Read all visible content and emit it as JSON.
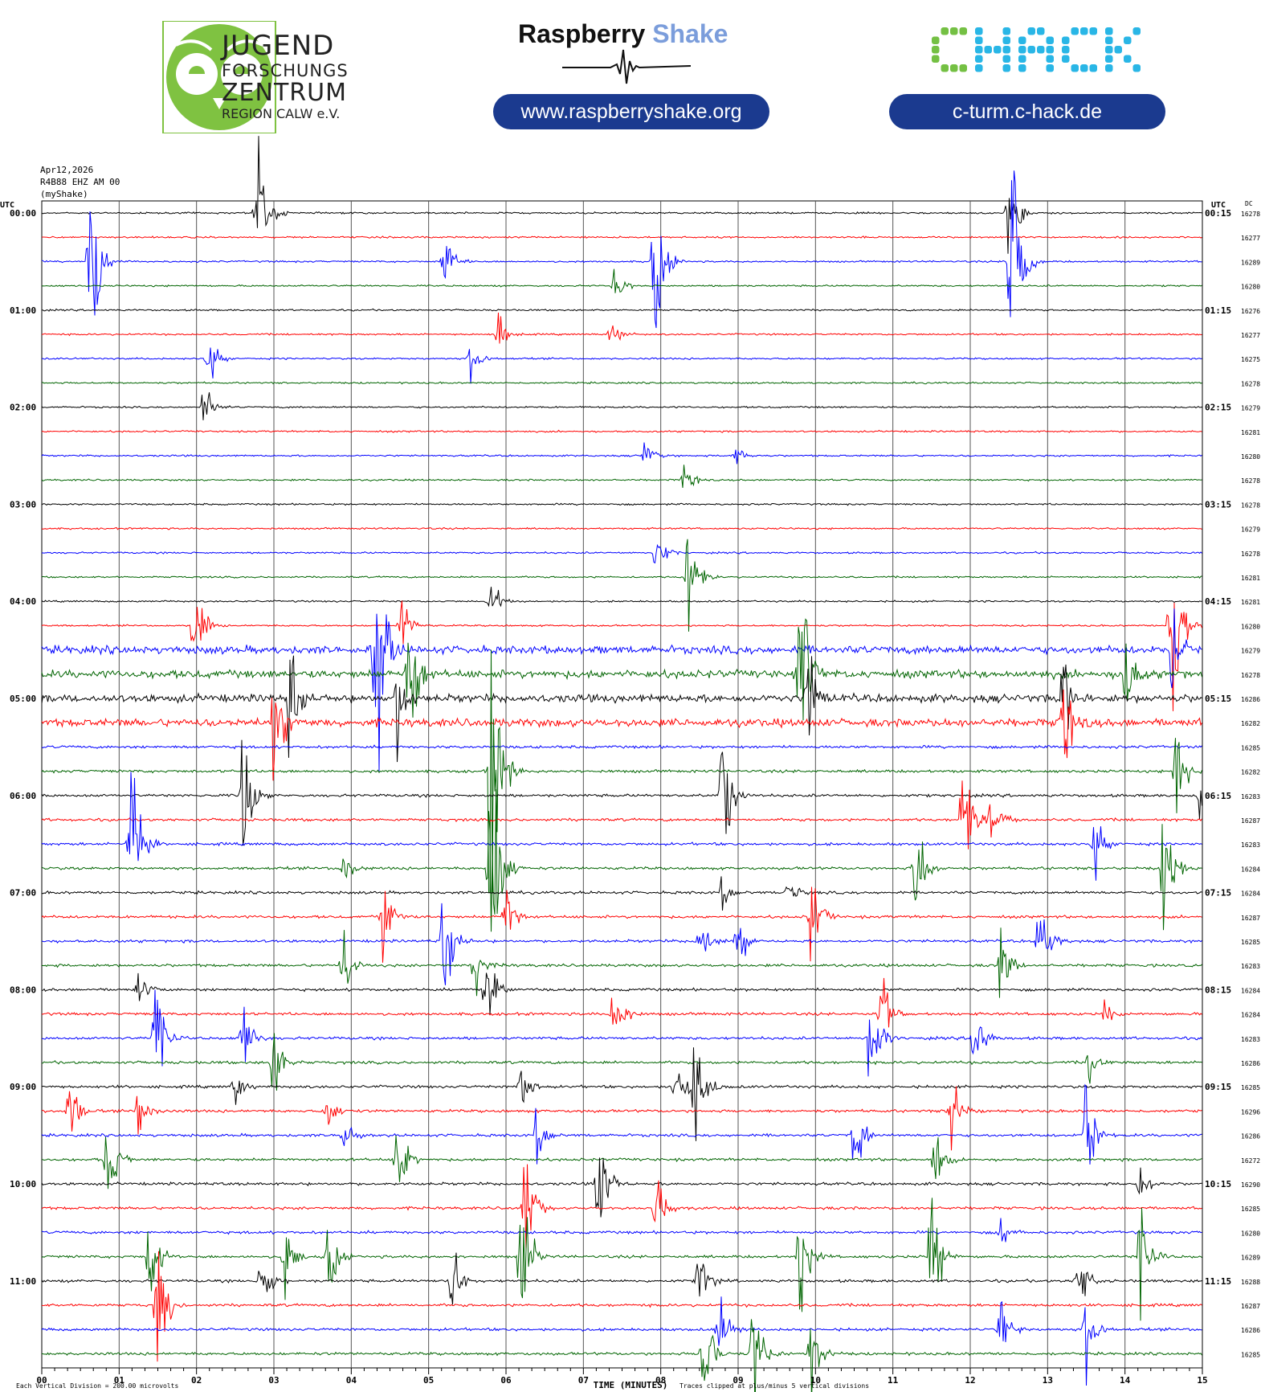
{
  "header": {
    "jfz": {
      "line1": "JUGEND",
      "line2": "FORSCHUNGS",
      "line3": "ZENTRUM",
      "line4": "REGION CALW e.V."
    },
    "rs": {
      "name_part1": "Raspberry",
      "name_part2": "Shake",
      "url": "www.raspberryshake.org"
    },
    "chack": {
      "logo_text": "CHACK",
      "url": "c-turm.c-hack.de"
    },
    "colors": {
      "jfz_green": "#7fc241",
      "pill_blue": "#1b3a8f",
      "shake_blue": "#7b9ddb",
      "chack_green": "#74c043",
      "chack_cyan": "#29b6e6"
    }
  },
  "chart_data": {
    "type": "helicorder",
    "date": "Apr12,2026",
    "station": "R4B88 EHZ AM 00",
    "network": "(myShake)",
    "left_axis_title": "UTC",
    "right_axis_title": "UTC",
    "dc_title": "DC",
    "xlabel": "TIME (MINUTES)",
    "xticks": [
      "00",
      "01",
      "02",
      "03",
      "04",
      "05",
      "06",
      "07",
      "08",
      "09",
      "10",
      "11",
      "12",
      "13",
      "14",
      "15"
    ],
    "xlim": [
      0,
      15
    ],
    "row_minutes": 15,
    "trace_colors": [
      "#000000",
      "#ff0000",
      "#0000ff",
      "#006400"
    ],
    "left_labels": [
      "00:00",
      "01:00",
      "02:00",
      "03:00",
      "04:00",
      "05:00",
      "06:00",
      "07:00",
      "08:00",
      "09:00",
      "10:00",
      "11:00"
    ],
    "right_labels": [
      "00:15",
      "01:15",
      "02:15",
      "03:15",
      "04:15",
      "05:15",
      "06:15",
      "07:15",
      "08:15",
      "09:15",
      "10:15",
      "11:15"
    ],
    "dc_values": [
      16278,
      16277,
      16289,
      16280,
      16276,
      16277,
      16275,
      16278,
      16279,
      16281,
      16280,
      16278,
      16278,
      16279,
      16278,
      16281,
      16281,
      16280,
      16279,
      16278,
      16286,
      16282,
      16285,
      16282,
      16283,
      16287,
      16283,
      16284,
      16284,
      16287,
      16285,
      16283,
      16284,
      16284,
      16283,
      16286,
      16285,
      16296,
      16286,
      16272,
      16290,
      16285,
      16280,
      16289,
      16288,
      16287,
      16286,
      16285
    ],
    "events": [
      {
        "row": 0,
        "minute": 2.78,
        "amp": 2.6
      },
      {
        "row": 0,
        "minute": 12.5,
        "amp": 1.2
      },
      {
        "row": 2,
        "minute": 0.62,
        "amp": 2.8
      },
      {
        "row": 2,
        "minute": 5.2,
        "amp": 0.8
      },
      {
        "row": 2,
        "minute": 7.92,
        "amp": 2.2
      },
      {
        "row": 2,
        "minute": 12.53,
        "amp": 5.5
      },
      {
        "row": 3,
        "minute": 7.4,
        "amp": 0.5
      },
      {
        "row": 5,
        "minute": 5.9,
        "amp": 0.6
      },
      {
        "row": 5,
        "minute": 7.35,
        "amp": 0.6
      },
      {
        "row": 6,
        "minute": 2.15,
        "amp": 0.8
      },
      {
        "row": 6,
        "minute": 5.55,
        "amp": 0.6
      },
      {
        "row": 8,
        "minute": 2.1,
        "amp": 0.6
      },
      {
        "row": 10,
        "minute": 7.8,
        "amp": 0.5
      },
      {
        "row": 10,
        "minute": 8.95,
        "amp": 0.5
      },
      {
        "row": 11,
        "minute": 8.3,
        "amp": 0.6
      },
      {
        "row": 14,
        "minute": 7.95,
        "amp": 0.7
      },
      {
        "row": 15,
        "minute": 8.35,
        "amp": 1.8
      },
      {
        "row": 16,
        "minute": 5.8,
        "amp": 0.6
      },
      {
        "row": 17,
        "minute": 1.97,
        "amp": 1.6
      },
      {
        "row": 17,
        "minute": 4.65,
        "amp": 0.8
      },
      {
        "row": 17,
        "minute": 14.6,
        "amp": 4.0
      },
      {
        "row": 18,
        "minute": 4.3,
        "amp": 5.5
      },
      {
        "row": 18,
        "minute": 14.6,
        "amp": 1.6
      },
      {
        "row": 19,
        "minute": 4.75,
        "amp": 2.8
      },
      {
        "row": 19,
        "minute": 9.8,
        "amp": 3.5
      },
      {
        "row": 19,
        "minute": 14.0,
        "amp": 1.5
      },
      {
        "row": 20,
        "minute": 3.2,
        "amp": 2.0
      },
      {
        "row": 20,
        "minute": 4.6,
        "amp": 1.5
      },
      {
        "row": 20,
        "minute": 9.9,
        "amp": 1.5
      },
      {
        "row": 20,
        "minute": 13.2,
        "amp": 1.5
      },
      {
        "row": 21,
        "minute": 3.0,
        "amp": 2.4
      },
      {
        "row": 21,
        "minute": 13.2,
        "amp": 2.0
      },
      {
        "row": 23,
        "minute": 5.8,
        "amp": 5.0
      },
      {
        "row": 23,
        "minute": 14.67,
        "amp": 1.8
      },
      {
        "row": 24,
        "minute": 2.6,
        "amp": 2.0
      },
      {
        "row": 24,
        "minute": 8.8,
        "amp": 2.0
      },
      {
        "row": 24,
        "minute": 14.95,
        "amp": 0.8
      },
      {
        "row": 25,
        "minute": 11.9,
        "amp": 2.2
      },
      {
        "row": 25,
        "minute": 12.25,
        "amp": 1.2
      },
      {
        "row": 26,
        "minute": 1.15,
        "amp": 3.5
      },
      {
        "row": 26,
        "minute": 13.6,
        "amp": 1.0
      },
      {
        "row": 27,
        "minute": 5.8,
        "amp": 5.0
      },
      {
        "row": 27,
        "minute": 11.3,
        "amp": 1.8
      },
      {
        "row": 27,
        "minute": 14.5,
        "amp": 1.8
      },
      {
        "row": 27,
        "minute": 3.9,
        "amp": 0.5
      },
      {
        "row": 28,
        "minute": 8.8,
        "amp": 0.5
      },
      {
        "row": 28,
        "minute": 9.65,
        "amp": 0.5
      },
      {
        "row": 29,
        "minute": 4.4,
        "amp": 1.5
      },
      {
        "row": 29,
        "minute": 6.0,
        "amp": 1.2
      },
      {
        "row": 29,
        "minute": 9.95,
        "amp": 1.4
      },
      {
        "row": 30,
        "minute": 5.2,
        "amp": 2.0
      },
      {
        "row": 30,
        "minute": 8.5,
        "amp": 0.8
      },
      {
        "row": 30,
        "minute": 9.0,
        "amp": 0.8
      },
      {
        "row": 30,
        "minute": 12.9,
        "amp": 1.5
      },
      {
        "row": 31,
        "minute": 3.9,
        "amp": 1.2
      },
      {
        "row": 31,
        "minute": 5.6,
        "amp": 0.9
      },
      {
        "row": 31,
        "minute": 12.4,
        "amp": 1.2
      },
      {
        "row": 32,
        "minute": 1.25,
        "amp": 0.6
      },
      {
        "row": 32,
        "minute": 5.75,
        "amp": 1.5
      },
      {
        "row": 33,
        "minute": 7.4,
        "amp": 1.5
      },
      {
        "row": 33,
        "minute": 10.85,
        "amp": 1.2
      },
      {
        "row": 33,
        "minute": 13.75,
        "amp": 0.5
      },
      {
        "row": 34,
        "minute": 1.47,
        "amp": 2.2
      },
      {
        "row": 34,
        "minute": 2.6,
        "amp": 1.2
      },
      {
        "row": 34,
        "minute": 10.7,
        "amp": 2.0
      },
      {
        "row": 34,
        "minute": 12.05,
        "amp": 1.2
      },
      {
        "row": 35,
        "minute": 3.0,
        "amp": 1.4
      },
      {
        "row": 35,
        "minute": 13.55,
        "amp": 0.8
      },
      {
        "row": 36,
        "minute": 2.5,
        "amp": 1.0
      },
      {
        "row": 36,
        "minute": 6.2,
        "amp": 0.8
      },
      {
        "row": 36,
        "minute": 8.2,
        "amp": 1.2
      },
      {
        "row": 36,
        "minute": 8.45,
        "amp": 1.8
      },
      {
        "row": 37,
        "minute": 0.35,
        "amp": 1.4
      },
      {
        "row": 37,
        "minute": 1.25,
        "amp": 0.8
      },
      {
        "row": 37,
        "minute": 3.7,
        "amp": 0.6
      },
      {
        "row": 37,
        "minute": 11.75,
        "amp": 1.4
      },
      {
        "row": 38,
        "minute": 3.9,
        "amp": 0.5
      },
      {
        "row": 38,
        "minute": 6.4,
        "amp": 0.8
      },
      {
        "row": 38,
        "minute": 10.5,
        "amp": 1.4
      },
      {
        "row": 38,
        "minute": 13.5,
        "amp": 2.0
      },
      {
        "row": 39,
        "minute": 0.85,
        "amp": 1.4
      },
      {
        "row": 39,
        "minute": 4.6,
        "amp": 1.2
      },
      {
        "row": 39,
        "minute": 11.55,
        "amp": 1.2
      },
      {
        "row": 40,
        "minute": 7.2,
        "amp": 2.0
      },
      {
        "row": 40,
        "minute": 14.2,
        "amp": 0.5
      },
      {
        "row": 41,
        "minute": 6.25,
        "amp": 1.6
      },
      {
        "row": 41,
        "minute": 7.95,
        "amp": 1.2
      },
      {
        "row": 42,
        "minute": 12.4,
        "amp": 0.5
      },
      {
        "row": 43,
        "minute": 1.4,
        "amp": 1.6
      },
      {
        "row": 43,
        "minute": 3.15,
        "amp": 1.0
      },
      {
        "row": 43,
        "minute": 3.7,
        "amp": 1.2
      },
      {
        "row": 43,
        "minute": 6.2,
        "amp": 2.4
      },
      {
        "row": 43,
        "minute": 9.8,
        "amp": 2.0
      },
      {
        "row": 43,
        "minute": 11.5,
        "amp": 2.0
      },
      {
        "row": 43,
        "minute": 14.2,
        "amp": 2.0
      },
      {
        "row": 44,
        "minute": 2.85,
        "amp": 1.2
      },
      {
        "row": 44,
        "minute": 5.3,
        "amp": 1.2
      },
      {
        "row": 44,
        "minute": 8.5,
        "amp": 1.0
      },
      {
        "row": 44,
        "minute": 13.4,
        "amp": 1.2
      },
      {
        "row": 45,
        "minute": 1.5,
        "amp": 1.6
      },
      {
        "row": 46,
        "minute": 8.75,
        "amp": 1.0
      },
      {
        "row": 46,
        "minute": 12.4,
        "amp": 1.0
      },
      {
        "row": 46,
        "minute": 13.5,
        "amp": 1.2
      },
      {
        "row": 47,
        "minute": 8.55,
        "amp": 2.0
      },
      {
        "row": 47,
        "minute": 9.2,
        "amp": 2.0
      },
      {
        "row": 47,
        "minute": 9.95,
        "amp": 1.2
      }
    ],
    "noisy_rows": [
      18,
      19,
      20,
      21
    ],
    "footer_left": "Each Vertical Division =  200.00 microvolts",
    "footer_right": "Traces clipped at plus/minus 5 vertical divisions"
  }
}
